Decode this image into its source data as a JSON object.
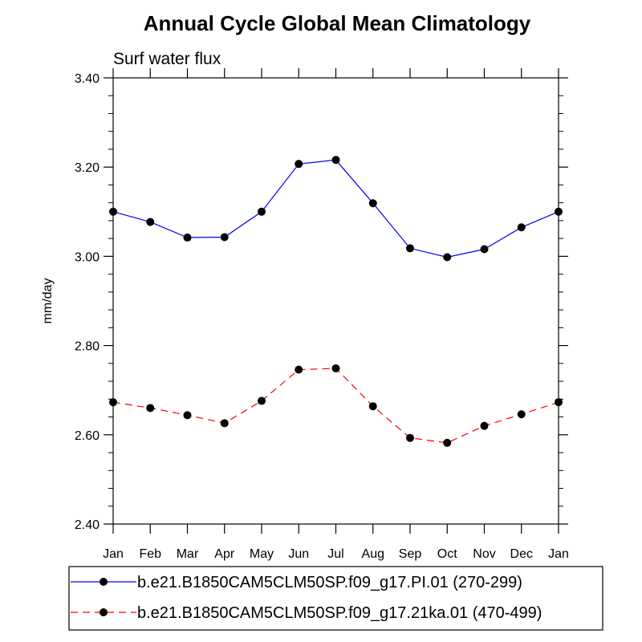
{
  "chart_data": {
    "type": "line",
    "title": "Annual Cycle Global Mean Climatology",
    "subtitle": "Surf water flux",
    "xlabel": "",
    "ylabel": "mm/day",
    "ylim": [
      2.4,
      3.4
    ],
    "yticks": [
      "2.40",
      "2.60",
      "2.80",
      "3.00",
      "3.20",
      "3.40"
    ],
    "categories": [
      "Jan",
      "Feb",
      "Mar",
      "Apr",
      "May",
      "Jun",
      "Jul",
      "Aug",
      "Sep",
      "Oct",
      "Nov",
      "Dec",
      "Jan"
    ],
    "grid": false,
    "legend_position": "bottom",
    "series": [
      {
        "name": "b.e21.B1850CAM5CLM50SP.f09_g17.PI.01 (270-299)",
        "color": "#0000ff",
        "dash": "solid",
        "values": [
          3.1,
          3.077,
          3.042,
          3.043,
          3.1,
          3.207,
          3.216,
          3.119,
          3.018,
          2.998,
          3.016,
          3.065,
          3.1
        ]
      },
      {
        "name": "b.e21.B1850CAM5CLM50SP.f09_g17.21ka.01 (470-499)",
        "color": "#ff0000",
        "dash": "dashed",
        "values": [
          2.673,
          2.66,
          2.644,
          2.626,
          2.676,
          2.746,
          2.749,
          2.664,
          2.593,
          2.582,
          2.62,
          2.646,
          2.673
        ]
      }
    ]
  }
}
